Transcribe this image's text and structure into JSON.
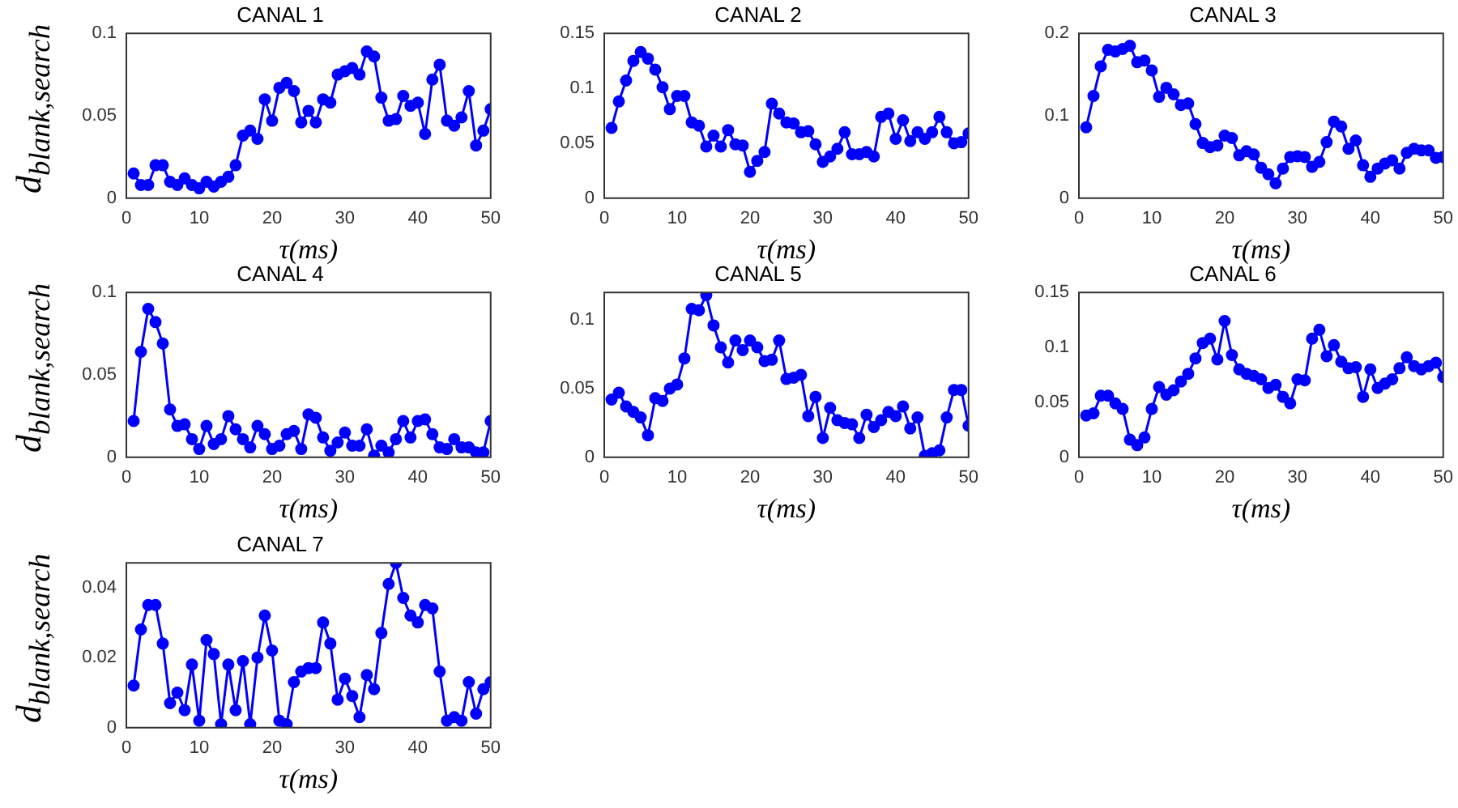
{
  "chart_data": [
    {
      "type": "line",
      "title": "CANAL 1",
      "xlabel": "τ(ms)",
      "ylabel": "d$_{blank,search}$",
      "x": [
        1,
        2,
        3,
        4,
        5,
        6,
        7,
        8,
        9,
        10,
        11,
        12,
        13,
        14,
        15,
        16,
        17,
        18,
        19,
        20,
        21,
        22,
        23,
        24,
        25,
        26,
        27,
        28,
        29,
        30,
        31,
        32,
        33,
        34,
        35,
        36,
        37,
        38,
        39,
        40,
        41,
        42,
        43,
        44,
        45,
        46,
        47,
        48,
        49,
        50
      ],
      "series": [
        {
          "color": "#0000ff",
          "values": [
            0.015,
            0.008,
            0.008,
            0.02,
            0.02,
            0.01,
            0.008,
            0.012,
            0.008,
            0.006,
            0.01,
            0.007,
            0.01,
            0.013,
            0.02,
            0.038,
            0.041,
            0.036,
            0.06,
            0.047,
            0.067,
            0.07,
            0.065,
            0.046,
            0.053,
            0.046,
            0.06,
            0.058,
            0.075,
            0.077,
            0.079,
            0.075,
            0.089,
            0.086,
            0.061,
            0.047,
            0.048,
            0.062,
            0.056,
            0.058,
            0.039,
            0.072,
            0.081,
            0.047,
            0.044,
            0.049,
            0.065,
            0.032,
            0.041,
            0.054
          ]
        }
      ],
      "xlim": [
        0,
        50
      ],
      "xticks": [
        0,
        10,
        20,
        30,
        40,
        50
      ],
      "ylim": [
        0,
        0.1
      ],
      "yticks": [
        0,
        0.05,
        0.1
      ],
      "marker": "circle",
      "line_style": "solid"
    },
    {
      "type": "line",
      "title": "CANAL 2",
      "xlabel": "τ(ms)",
      "x": [
        1,
        2,
        3,
        4,
        5,
        6,
        7,
        8,
        9,
        10,
        11,
        12,
        13,
        14,
        15,
        16,
        17,
        18,
        19,
        20,
        21,
        22,
        23,
        24,
        25,
        26,
        27,
        28,
        29,
        30,
        31,
        32,
        33,
        34,
        35,
        36,
        37,
        38,
        39,
        40,
        41,
        42,
        43,
        44,
        45,
        46,
        47,
        48,
        49,
        50
      ],
      "series": [
        {
          "color": "#0000ff",
          "values": [
            0.064,
            0.088,
            0.107,
            0.125,
            0.133,
            0.127,
            0.117,
            0.101,
            0.081,
            0.093,
            0.093,
            0.069,
            0.066,
            0.047,
            0.057,
            0.047,
            0.062,
            0.049,
            0.048,
            0.024,
            0.034,
            0.042,
            0.086,
            0.077,
            0.069,
            0.068,
            0.06,
            0.061,
            0.049,
            0.033,
            0.038,
            0.045,
            0.06,
            0.04,
            0.04,
            0.042,
            0.038,
            0.074,
            0.077,
            0.054,
            0.071,
            0.052,
            0.06,
            0.054,
            0.06,
            0.074,
            0.06,
            0.05,
            0.051,
            0.059
          ]
        }
      ],
      "xlim": [
        0,
        50
      ],
      "xticks": [
        0,
        10,
        20,
        30,
        40,
        50
      ],
      "ylim": [
        0,
        0.15
      ],
      "yticks": [
        0,
        0.05,
        0.1,
        0.15
      ],
      "marker": "circle",
      "line_style": "solid"
    },
    {
      "type": "line",
      "title": "CANAL 3",
      "xlabel": "τ(ms)",
      "x": [
        1,
        2,
        3,
        4,
        5,
        6,
        7,
        8,
        9,
        10,
        11,
        12,
        13,
        14,
        15,
        16,
        17,
        18,
        19,
        20,
        21,
        22,
        23,
        24,
        25,
        26,
        27,
        28,
        29,
        30,
        31,
        32,
        33,
        34,
        35,
        36,
        37,
        38,
        39,
        40,
        41,
        42,
        43,
        44,
        45,
        46,
        47,
        48,
        49,
        50
      ],
      "series": [
        {
          "color": "#0000ff",
          "values": [
            0.086,
            0.124,
            0.16,
            0.18,
            0.178,
            0.181,
            0.185,
            0.165,
            0.167,
            0.155,
            0.123,
            0.134,
            0.126,
            0.113,
            0.115,
            0.09,
            0.067,
            0.062,
            0.064,
            0.076,
            0.073,
            0.052,
            0.057,
            0.053,
            0.037,
            0.029,
            0.018,
            0.036,
            0.05,
            0.051,
            0.05,
            0.038,
            0.044,
            0.068,
            0.093,
            0.087,
            0.06,
            0.07,
            0.04,
            0.026,
            0.036,
            0.042,
            0.046,
            0.036,
            0.055,
            0.06,
            0.058,
            0.058,
            0.049,
            0.05
          ]
        }
      ],
      "xlim": [
        0,
        50
      ],
      "xticks": [
        0,
        10,
        20,
        30,
        40,
        50
      ],
      "ylim": [
        0,
        0.2
      ],
      "yticks": [
        0,
        0.1,
        0.2
      ],
      "marker": "circle",
      "line_style": "solid"
    },
    {
      "type": "line",
      "title": "CANAL 4",
      "xlabel": "τ(ms)",
      "ylabel": "d$_{blank,search}$",
      "x": [
        1,
        2,
        3,
        4,
        5,
        6,
        7,
        8,
        9,
        10,
        11,
        12,
        13,
        14,
        15,
        16,
        17,
        18,
        19,
        20,
        21,
        22,
        23,
        24,
        25,
        26,
        27,
        28,
        29,
        30,
        31,
        32,
        33,
        34,
        35,
        36,
        37,
        38,
        39,
        40,
        41,
        42,
        43,
        44,
        45,
        46,
        47,
        48,
        49,
        50
      ],
      "series": [
        {
          "color": "#0000ff",
          "values": [
            0.022,
            0.064,
            0.09,
            0.082,
            0.069,
            0.029,
            0.019,
            0.02,
            0.011,
            0.005,
            0.019,
            0.008,
            0.011,
            0.025,
            0.017,
            0.011,
            0.006,
            0.019,
            0.014,
            0.005,
            0.007,
            0.014,
            0.016,
            0.005,
            0.026,
            0.024,
            0.012,
            0.004,
            0.009,
            0.015,
            0.007,
            0.007,
            0.017,
            0.001,
            0.007,
            0.003,
            0.011,
            0.022,
            0.012,
            0.022,
            0.023,
            0.014,
            0.006,
            0.005,
            0.011,
            0.006,
            0.006,
            0.003,
            0.003,
            0.022
          ]
        }
      ],
      "xlim": [
        0,
        50
      ],
      "xticks": [
        0,
        10,
        20,
        30,
        40,
        50
      ],
      "ylim": [
        0,
        0.1
      ],
      "yticks": [
        0,
        0.05,
        0.1
      ],
      "marker": "circle",
      "line_style": "solid"
    },
    {
      "type": "line",
      "title": "CANAL 5",
      "xlabel": "τ(ms)",
      "x": [
        1,
        2,
        3,
        4,
        5,
        6,
        7,
        8,
        9,
        10,
        11,
        12,
        13,
        14,
        15,
        16,
        17,
        18,
        19,
        20,
        21,
        22,
        23,
        24,
        25,
        26,
        27,
        28,
        29,
        30,
        31,
        32,
        33,
        34,
        35,
        36,
        37,
        38,
        39,
        40,
        41,
        42,
        43,
        44,
        45,
        46,
        47,
        48,
        49,
        50
      ],
      "series": [
        {
          "color": "#0000ff",
          "values": [
            0.042,
            0.047,
            0.037,
            0.033,
            0.029,
            0.016,
            0.043,
            0.041,
            0.05,
            0.053,
            0.072,
            0.108,
            0.107,
            0.118,
            0.096,
            0.08,
            0.069,
            0.085,
            0.078,
            0.085,
            0.08,
            0.07,
            0.071,
            0.085,
            0.057,
            0.058,
            0.06,
            0.03,
            0.044,
            0.014,
            0.036,
            0.027,
            0.025,
            0.024,
            0.014,
            0.031,
            0.022,
            0.027,
            0.033,
            0.03,
            0.037,
            0.021,
            0.029,
            0.001,
            0.003,
            0.005,
            0.029,
            0.049,
            0.049,
            0.023
          ]
        }
      ],
      "xlim": [
        0,
        50
      ],
      "xticks": [
        0,
        10,
        20,
        30,
        40,
        50
      ],
      "ylim": [
        0,
        0.12
      ],
      "yticks": [
        0,
        0.05,
        0.1
      ],
      "marker": "circle",
      "line_style": "solid"
    },
    {
      "type": "line",
      "title": "CANAL 6",
      "xlabel": "τ(ms)",
      "x": [
        1,
        2,
        3,
        4,
        5,
        6,
        7,
        8,
        9,
        10,
        11,
        12,
        13,
        14,
        15,
        16,
        17,
        18,
        19,
        20,
        21,
        22,
        23,
        24,
        25,
        26,
        27,
        28,
        29,
        30,
        31,
        32,
        33,
        34,
        35,
        36,
        37,
        38,
        39,
        40,
        41,
        42,
        43,
        44,
        45,
        46,
        47,
        48,
        49,
        50
      ],
      "series": [
        {
          "color": "#0000ff",
          "values": [
            0.038,
            0.04,
            0.056,
            0.056,
            0.049,
            0.044,
            0.016,
            0.011,
            0.018,
            0.044,
            0.064,
            0.057,
            0.061,
            0.069,
            0.076,
            0.09,
            0.104,
            0.108,
            0.089,
            0.124,
            0.093,
            0.08,
            0.076,
            0.074,
            0.071,
            0.063,
            0.066,
            0.055,
            0.049,
            0.071,
            0.07,
            0.108,
            0.116,
            0.092,
            0.102,
            0.087,
            0.081,
            0.082,
            0.055,
            0.08,
            0.063,
            0.067,
            0.071,
            0.081,
            0.091,
            0.083,
            0.08,
            0.083,
            0.086,
            0.073
          ]
        }
      ],
      "xlim": [
        0,
        50
      ],
      "xticks": [
        0,
        10,
        20,
        30,
        40,
        50
      ],
      "ylim": [
        0,
        0.15
      ],
      "yticks": [
        0,
        0.05,
        0.1,
        0.15
      ],
      "marker": "circle",
      "line_style": "solid"
    },
    {
      "type": "line",
      "title": "CANAL 7",
      "xlabel": "τ(ms)",
      "ylabel": "d$_{blank,search}$",
      "x": [
        1,
        2,
        3,
        4,
        5,
        6,
        7,
        8,
        9,
        10,
        11,
        12,
        13,
        14,
        15,
        16,
        17,
        18,
        19,
        20,
        21,
        22,
        23,
        24,
        25,
        26,
        27,
        28,
        29,
        30,
        31,
        32,
        33,
        34,
        35,
        36,
        37,
        38,
        39,
        40,
        41,
        42,
        43,
        44,
        45,
        46,
        47,
        48,
        49,
        50
      ],
      "series": [
        {
          "color": "#0000ff",
          "values": [
            0.012,
            0.028,
            0.035,
            0.035,
            0.024,
            0.007,
            0.01,
            0.005,
            0.018,
            0.002,
            0.025,
            0.021,
            0.001,
            0.018,
            0.005,
            0.019,
            0.001,
            0.02,
            0.032,
            0.022,
            0.002,
            0.001,
            0.013,
            0.016,
            0.017,
            0.017,
            0.03,
            0.024,
            0.008,
            0.014,
            0.009,
            0.003,
            0.015,
            0.011,
            0.027,
            0.041,
            0.047,
            0.037,
            0.032,
            0.03,
            0.035,
            0.034,
            0.016,
            0.002,
            0.003,
            0.002,
            0.013,
            0.004,
            0.011,
            0.013
          ]
        }
      ],
      "xlim": [
        0,
        50
      ],
      "xticks": [
        0,
        10,
        20,
        30,
        40,
        50
      ],
      "ylim": [
        0,
        0.047
      ],
      "yticks": [
        0,
        0.02,
        0.04
      ],
      "marker": "circle",
      "line_style": "solid"
    }
  ]
}
